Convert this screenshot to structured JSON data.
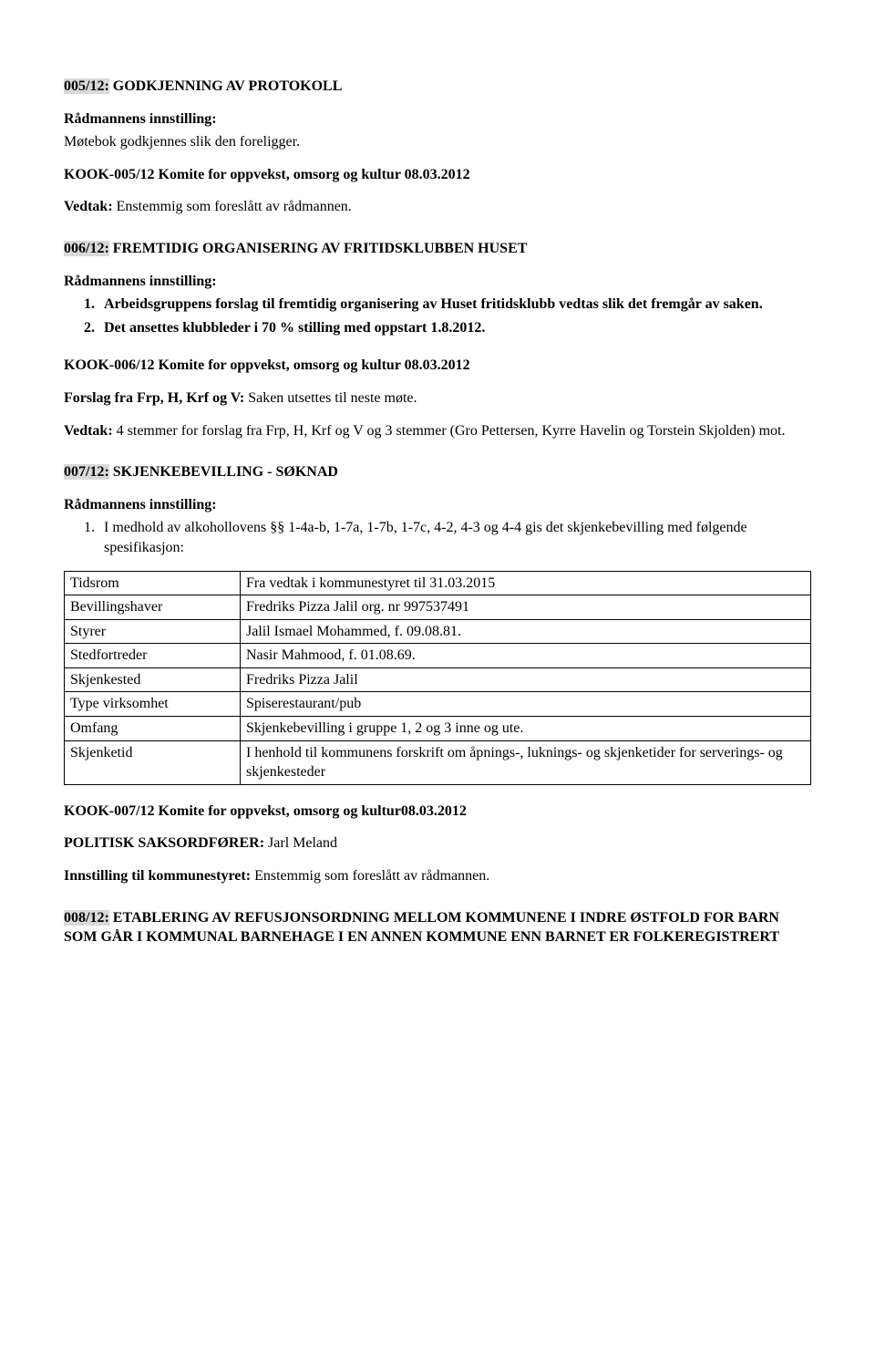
{
  "s005": {
    "title_num": "005/12:",
    "title_rest": "  GODKJENNING AV PROTOKOLL",
    "innstilling_label": "Rådmannens innstilling:",
    "innstilling_text": "Møtebok godkjennes slik den foreligger.",
    "kook": "KOOK-005/12 Komite for oppvekst, omsorg og kultur 08.03.2012",
    "vedtak_label": "Vedtak:",
    "vedtak_text": " Enstemmig som foreslått av rådmannen."
  },
  "s006": {
    "title_num": "006/12:",
    "title_rest": "  FREMTIDIG ORGANISERING AV FRITIDSKLUBBEN HUSET",
    "innstilling_label": "Rådmannens innstilling:",
    "items": [
      "Arbeidsgruppens forslag til fremtidig organisering av Huset fritidsklubb vedtas slik det fremgår av saken.",
      "Det ansettes klubbleder i 70 % stilling med oppstart 1.8.2012."
    ],
    "kook": "KOOK-006/12 Komite for oppvekst, omsorg og kultur 08.03.2012",
    "forslag_label": "Forslag fra Frp, H, Krf og V:",
    "forslag_text": " Saken utsettes til neste møte.",
    "vedtak_label": "Vedtak:",
    "vedtak_text": " 4 stemmer for forslag fra Frp, H, Krf og V og 3 stemmer (Gro Pettersen, Kyrre Havelin og Torstein Skjolden) mot."
  },
  "s007": {
    "title_num": "007/12:",
    "title_rest": "  SKJENKEBEVILLING - SØKNAD",
    "innstilling_label": "Rådmannens innstilling:",
    "items": [
      "I medhold av alkohollovens §§ 1-4a-b, 1-7a, 1-7b, 1-7c, 4-2, 4-3 og 4-4 gis det skjenkebevilling med følgende spesifikasjon:"
    ],
    "table": [
      [
        "Tidsrom",
        "Fra vedtak i kommunestyret til 31.03.2015"
      ],
      [
        "Bevillingshaver",
        "Fredriks Pizza Jalil org. nr 997537491"
      ],
      [
        "Styrer",
        "Jalil Ismael Mohammed, f. 09.08.81."
      ],
      [
        "Stedfortreder",
        "Nasir Mahmood, f. 01.08.69."
      ],
      [
        "Skjenkested",
        "Fredriks Pizza Jalil"
      ],
      [
        "Type virksomhet",
        "Spiserestaurant/pub"
      ],
      [
        "Omfang",
        "Skjenkebevilling i gruppe 1, 2 og 3 inne og ute."
      ],
      [
        "Skjenketid",
        "I henhold til kommunens forskrift om åpnings-, luknings- og skjenketider for serverings- og skjenkesteder"
      ]
    ],
    "kook": "KOOK-007/12 Komite for oppvekst, omsorg og kultur08.03.2012",
    "saksord_label": "POLITISK SAKSORDFØRER:",
    "saksord_text": " Jarl Meland",
    "innst_ks_label": "Innstilling til kommunestyret:",
    "innst_ks_text": " Enstemmig som foreslått av rådmannen."
  },
  "s008": {
    "title_num": "008/12:",
    "title_rest": "  ETABLERING AV REFUSJONSORDNING MELLOM KOMMUNENE I INDRE ØSTFOLD FOR BARN SOM GÅR I KOMMUNAL BARNEHAGE I EN ANNEN KOMMUNE ENN BARNET ER FOLKEREGISTRERT"
  }
}
